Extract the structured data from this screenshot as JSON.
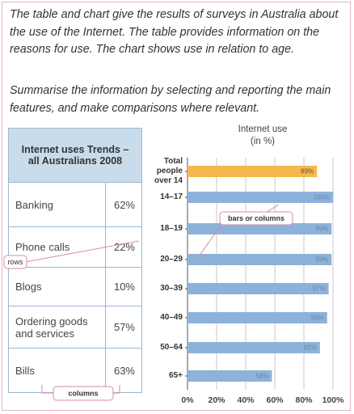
{
  "instructions": [
    "The table and chart give the results of surveys in Australia about the use of the Internet. The table provides information on the reasons for use. The chart shows use in relation to age.",
    "Summarise the information by selecting and reporting the main features, and make comparisons where relevant."
  ],
  "table": {
    "title": "Internet uses Trends – all Australians 2008",
    "rows": [
      [
        "Banking",
        "62%"
      ],
      [
        "Phone calls",
        "22%"
      ],
      [
        "Blogs",
        "10%"
      ],
      [
        "Ordering goods and services",
        "57%"
      ],
      [
        "Bills",
        "63%"
      ]
    ]
  },
  "annotations": {
    "rows": "rows",
    "columns": "columns",
    "bars": "bars or columns"
  },
  "chart_data": {
    "type": "hbar",
    "title": "Internet use",
    "subtitle": "(in %)",
    "categories": [
      "Total people over 14",
      "14–17",
      "18–19",
      "20–29",
      "30–39",
      "40–49",
      "50–64",
      "65+"
    ],
    "values": [
      89,
      100,
      99,
      99,
      97,
      96,
      91,
      58
    ],
    "value_labels": [
      "89%",
      "100%",
      "99%",
      "99%",
      "97%",
      "96%",
      "91%",
      "58%"
    ],
    "colors": [
      "#f5b84c",
      "#8db2da",
      "#8db2da",
      "#8db2da",
      "#8db2da",
      "#8db2da",
      "#8db2da",
      "#8db2da"
    ],
    "xlim": [
      0,
      100
    ],
    "xticks": [
      {
        "value": 0,
        "label": "0%"
      },
      {
        "value": 20,
        "label": "20%"
      },
      {
        "value": 40,
        "label": "40%"
      },
      {
        "value": 60,
        "label": "60%"
      },
      {
        "value": 80,
        "label": "80%"
      },
      {
        "value": 100,
        "label": "100%"
      }
    ],
    "grid": true
  }
}
